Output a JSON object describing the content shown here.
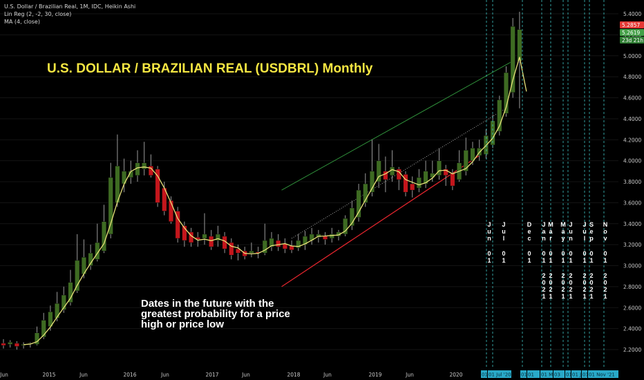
{
  "legend": {
    "line1": "U.S. Dollar / Brazilian Real, 1M, IDC, Heikin Ashi",
    "line2": "Lin Reg (2, -2, 30, close)",
    "line3": "MA (4, close)"
  },
  "title": "U.S. DOLLAR / BRAZILIAN REAL (USDBRL) Monthly",
  "note": "Dates in the future with the greatest probability for a price high or price low",
  "price_badges": [
    {
      "label": "5.2857",
      "color": "#e53935"
    },
    {
      "label": "5.2619",
      "color": "#43a047"
    },
    {
      "label": "23d 21h",
      "color": "#2e7d32"
    }
  ],
  "colors": {
    "up": "#3e6b22",
    "down": "#c4161c",
    "ma": "#e8e27a",
    "upper_channel": "#2f8f3a",
    "lower_channel": "#e0242c",
    "mid_channel": "#cccccc",
    "future_lines": "#3fc6c6",
    "date_badge": "#29a9c8"
  },
  "chart_data": {
    "type": "candlestick",
    "ylim": [
      2.1,
      5.5
    ],
    "yticks": [
      "5.4000",
      "5.2000",
      "5.0000",
      "4.8000",
      "4.6000",
      "4.4000",
      "4.2000",
      "4.0000",
      "3.8000",
      "3.6000",
      "3.4000",
      "3.2000",
      "3.0000",
      "2.8000",
      "2.6000",
      "2.4000",
      "2.2000"
    ],
    "xticks": [
      "Jun",
      "2015",
      "Jun",
      "2016",
      "Jun",
      "2017",
      "Jun",
      "2018",
      "Jun",
      "2019",
      "Jun",
      "2020"
    ],
    "candles": [
      {
        "t": 0,
        "o": 2.26,
        "h": 2.3,
        "l": 2.21,
        "c": 2.24
      },
      {
        "t": 1,
        "o": 2.25,
        "h": 2.29,
        "l": 2.22,
        "c": 2.27
      },
      {
        "t": 2,
        "o": 2.26,
        "h": 2.28,
        "l": 2.2,
        "c": 2.23
      },
      {
        "t": 3,
        "o": 2.24,
        "h": 2.27,
        "l": 2.21,
        "c": 2.25
      },
      {
        "t": 4,
        "o": 2.25,
        "h": 2.27,
        "l": 2.22,
        "c": 2.26
      },
      {
        "t": 5,
        "o": 2.25,
        "h": 2.42,
        "l": 2.24,
        "c": 2.36
      },
      {
        "t": 6,
        "o": 2.32,
        "h": 2.55,
        "l": 2.3,
        "c": 2.48
      },
      {
        "t": 7,
        "o": 2.42,
        "h": 2.62,
        "l": 2.38,
        "c": 2.56
      },
      {
        "t": 8,
        "o": 2.5,
        "h": 2.75,
        "l": 2.47,
        "c": 2.64
      },
      {
        "t": 9,
        "o": 2.58,
        "h": 2.8,
        "l": 2.55,
        "c": 2.72
      },
      {
        "t": 10,
        "o": 2.65,
        "h": 2.96,
        "l": 2.62,
        "c": 2.84
      },
      {
        "t": 11,
        "o": 2.76,
        "h": 3.3,
        "l": 2.74,
        "c": 3.05
      },
      {
        "t": 12,
        "o": 2.92,
        "h": 3.25,
        "l": 2.88,
        "c": 3.08
      },
      {
        "t": 13,
        "o": 3.0,
        "h": 3.2,
        "l": 2.96,
        "c": 3.12
      },
      {
        "t": 14,
        "o": 3.06,
        "h": 3.4,
        "l": 3.04,
        "c": 3.22
      },
      {
        "t": 15,
        "o": 3.14,
        "h": 3.58,
        "l": 3.12,
        "c": 3.42
      },
      {
        "t": 16,
        "o": 3.3,
        "h": 3.98,
        "l": 3.26,
        "c": 3.84
      },
      {
        "t": 17,
        "o": 3.6,
        "h": 4.25,
        "l": 3.56,
        "c": 3.95
      },
      {
        "t": 18,
        "o": 3.78,
        "h": 4.02,
        "l": 3.7,
        "c": 3.9
      },
      {
        "t": 19,
        "o": 3.84,
        "h": 4.0,
        "l": 3.78,
        "c": 3.9
      },
      {
        "t": 20,
        "o": 3.86,
        "h": 4.1,
        "l": 3.8,
        "c": 3.98
      },
      {
        "t": 21,
        "o": 3.92,
        "h": 4.18,
        "l": 3.86,
        "c": 3.98
      },
      {
        "t": 22,
        "o": 3.95,
        "h": 4.06,
        "l": 3.84,
        "c": 3.86
      },
      {
        "t": 23,
        "o": 3.92,
        "h": 3.95,
        "l": 3.56,
        "c": 3.6
      },
      {
        "t": 24,
        "o": 3.74,
        "h": 3.8,
        "l": 3.48,
        "c": 3.52
      },
      {
        "t": 25,
        "o": 3.62,
        "h": 3.66,
        "l": 3.4,
        "c": 3.42
      },
      {
        "t": 26,
        "o": 3.52,
        "h": 3.56,
        "l": 3.22,
        "c": 3.26
      },
      {
        "t": 27,
        "o": 3.38,
        "h": 3.42,
        "l": 3.18,
        "c": 3.24
      },
      {
        "t": 28,
        "o": 3.32,
        "h": 3.36,
        "l": 3.18,
        "c": 3.22
      },
      {
        "t": 29,
        "o": 3.27,
        "h": 3.32,
        "l": 3.18,
        "c": 3.25
      },
      {
        "t": 30,
        "o": 3.26,
        "h": 3.5,
        "l": 3.2,
        "c": 3.3
      },
      {
        "t": 31,
        "o": 3.28,
        "h": 3.34,
        "l": 3.15,
        "c": 3.18
      },
      {
        "t": 32,
        "o": 3.24,
        "h": 3.38,
        "l": 3.18,
        "c": 3.3
      },
      {
        "t": 33,
        "o": 3.28,
        "h": 3.32,
        "l": 3.12,
        "c": 3.16
      },
      {
        "t": 34,
        "o": 3.22,
        "h": 3.26,
        "l": 3.06,
        "c": 3.1
      },
      {
        "t": 35,
        "o": 3.16,
        "h": 3.2,
        "l": 3.05,
        "c": 3.12
      },
      {
        "t": 36,
        "o": 3.14,
        "h": 3.18,
        "l": 3.06,
        "c": 3.09
      },
      {
        "t": 37,
        "o": 3.12,
        "h": 3.22,
        "l": 3.08,
        "c": 3.14
      },
      {
        "t": 38,
        "o": 3.13,
        "h": 3.18,
        "l": 3.07,
        "c": 3.12
      },
      {
        "t": 39,
        "o": 3.12,
        "h": 3.4,
        "l": 3.1,
        "c": 3.24
      },
      {
        "t": 40,
        "o": 3.18,
        "h": 3.32,
        "l": 3.14,
        "c": 3.26
      },
      {
        "t": 41,
        "o": 3.24,
        "h": 3.3,
        "l": 3.14,
        "c": 3.18
      },
      {
        "t": 42,
        "o": 3.21,
        "h": 3.26,
        "l": 3.12,
        "c": 3.16
      },
      {
        "t": 43,
        "o": 3.19,
        "h": 3.24,
        "l": 3.12,
        "c": 3.15
      },
      {
        "t": 44,
        "o": 3.17,
        "h": 3.3,
        "l": 3.14,
        "c": 3.24
      },
      {
        "t": 45,
        "o": 3.2,
        "h": 3.33,
        "l": 3.15,
        "c": 3.28
      },
      {
        "t": 46,
        "o": 3.24,
        "h": 3.36,
        "l": 3.2,
        "c": 3.3
      },
      {
        "t": 47,
        "o": 3.27,
        "h": 3.34,
        "l": 3.22,
        "c": 3.3
      },
      {
        "t": 48,
        "o": 3.28,
        "h": 3.32,
        "l": 3.2,
        "c": 3.25
      },
      {
        "t": 49,
        "o": 3.26,
        "h": 3.36,
        "l": 3.22,
        "c": 3.3
      },
      {
        "t": 50,
        "o": 3.28,
        "h": 3.34,
        "l": 3.24,
        "c": 3.32
      },
      {
        "t": 51,
        "o": 3.3,
        "h": 3.48,
        "l": 3.28,
        "c": 3.45
      },
      {
        "t": 52,
        "o": 3.38,
        "h": 3.62,
        "l": 3.34,
        "c": 3.55
      },
      {
        "t": 53,
        "o": 3.46,
        "h": 3.78,
        "l": 3.42,
        "c": 3.72
      },
      {
        "t": 54,
        "o": 3.6,
        "h": 3.88,
        "l": 3.56,
        "c": 3.78
      },
      {
        "t": 55,
        "o": 3.7,
        "h": 4.2,
        "l": 3.66,
        "c": 3.9
      },
      {
        "t": 56,
        "o": 3.8,
        "h": 4.16,
        "l": 3.74,
        "c": 4.0
      },
      {
        "t": 57,
        "o": 3.9,
        "h": 4.04,
        "l": 3.7,
        "c": 3.82
      },
      {
        "t": 58,
        "o": 3.86,
        "h": 4.1,
        "l": 3.8,
        "c": 3.94
      },
      {
        "t": 59,
        "o": 3.92,
        "h": 3.94,
        "l": 3.72,
        "c": 3.82
      },
      {
        "t": 60,
        "o": 3.87,
        "h": 3.9,
        "l": 3.66,
        "c": 3.7
      },
      {
        "t": 61,
        "o": 3.78,
        "h": 3.85,
        "l": 3.65,
        "c": 3.72
      },
      {
        "t": 62,
        "o": 3.74,
        "h": 3.92,
        "l": 3.7,
        "c": 3.84
      },
      {
        "t": 63,
        "o": 3.78,
        "h": 4.0,
        "l": 3.74,
        "c": 3.9
      },
      {
        "t": 64,
        "o": 3.84,
        "h": 4.0,
        "l": 3.8,
        "c": 3.88
      },
      {
        "t": 65,
        "o": 3.86,
        "h": 4.12,
        "l": 3.82,
        "c": 4.0
      },
      {
        "t": 66,
        "o": 3.92,
        "h": 3.96,
        "l": 3.76,
        "c": 3.86
      },
      {
        "t": 67,
        "o": 3.88,
        "h": 3.92,
        "l": 3.72,
        "c": 3.76
      },
      {
        "t": 68,
        "o": 3.82,
        "h": 4.1,
        "l": 3.8,
        "c": 3.98
      },
      {
        "t": 69,
        "o": 3.9,
        "h": 4.22,
        "l": 3.86,
        "c": 4.1
      },
      {
        "t": 70,
        "o": 4.0,
        "h": 4.18,
        "l": 3.96,
        "c": 4.12
      },
      {
        "t": 71,
        "o": 4.05,
        "h": 4.2,
        "l": 4.0,
        "c": 4.12
      },
      {
        "t": 72,
        "o": 4.06,
        "h": 4.3,
        "l": 4.02,
        "c": 4.24
      },
      {
        "t": 73,
        "o": 4.15,
        "h": 4.44,
        "l": 4.12,
        "c": 4.38
      },
      {
        "t": 74,
        "o": 4.28,
        "h": 4.62,
        "l": 4.24,
        "c": 4.58
      },
      {
        "t": 75,
        "o": 4.45,
        "h": 4.9,
        "l": 4.42,
        "c": 4.84
      },
      {
        "t": 76,
        "o": 4.65,
        "h": 5.36,
        "l": 4.6,
        "c": 5.28
      },
      {
        "t": 77,
        "o": 4.95,
        "h": 5.42,
        "l": 4.5,
        "c": 5.25
      }
    ],
    "future_dates": [
      {
        "labels": [
          "Jun",
          "01"
        ],
        "badge": "01"
      },
      {
        "labels": [
          "Jul",
          "01"
        ],
        "badge": "01 Jul '20"
      },
      {
        "labels": [
          "Dec",
          "01"
        ],
        "badge": "01 Ja"
      },
      {
        "labels": [
          "Jan",
          "01",
          "2021"
        ],
        "badge": "01"
      },
      {
        "labels": [
          "Mar",
          "01",
          "2021"
        ],
        "badge": "01 M"
      },
      {
        "labels": [
          "May",
          "01",
          "2021"
        ],
        "badge": "03"
      },
      {
        "labels": [
          "Jun",
          "01",
          "2021"
        ],
        "badge": "01"
      },
      {
        "labels": [
          "Jul",
          "01",
          "2021"
        ],
        "badge": "01 Ju"
      },
      {
        "labels": [
          "Sep",
          "01",
          "2021"
        ],
        "badge": "01 Se"
      },
      {
        "labels": [
          "Nov",
          "01",
          "2021"
        ],
        "badge": "01 Nov '21"
      }
    ]
  }
}
